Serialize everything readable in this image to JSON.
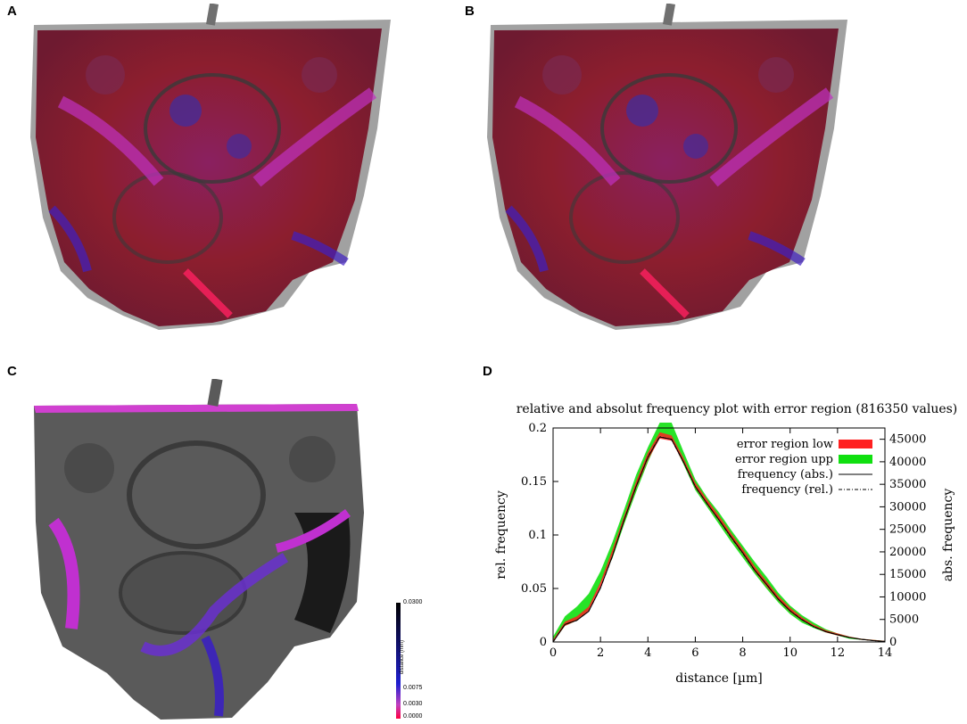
{
  "panels": {
    "a": {
      "label": "A"
    },
    "b": {
      "label": "B"
    },
    "c": {
      "label": "C"
    },
    "d": {
      "label": "D"
    }
  },
  "colorbar": {
    "title": "distance (mm)",
    "ticks": [
      "0.0300",
      "0.0075",
      "0.0030",
      "0.0000"
    ],
    "tick_values": [
      0.03,
      0.0075,
      0.003,
      0.0
    ],
    "colors": [
      "#000000",
      "#1f1fd0",
      "#c040c0",
      "#ff0040"
    ]
  },
  "chart_data": {
    "type": "line",
    "title": "relative and absolut frequency plot with error region (816350 values)",
    "xlabel": "distance [µm]",
    "ylabel": "rel. frequency",
    "y2label": "abs. frequency",
    "xlim": [
      0,
      14
    ],
    "ylim": [
      0,
      0.2
    ],
    "y2lim": [
      0,
      47500
    ],
    "xticks": [
      "0",
      "2",
      "4",
      "6",
      "8",
      "10",
      "12",
      "14"
    ],
    "yticks": [
      "0",
      "0.05",
      "0.1",
      "0.15",
      "0.2"
    ],
    "y2ticks": [
      "0",
      "5000",
      "10000",
      "15000",
      "20000",
      "25000",
      "30000",
      "35000",
      "40000",
      "45000"
    ],
    "legend_position": "top-right",
    "legend": [
      {
        "name": "error region low",
        "color": "#ff2020"
      },
      {
        "name": "error region upp",
        "color": "#10e010"
      },
      {
        "name": "frequency (abs.)",
        "color": "#000000"
      },
      {
        "name": "frequency (rel.)",
        "color": "#000000"
      }
    ],
    "x": [
      0,
      0.5,
      1,
      1.5,
      2,
      2.5,
      3,
      3.5,
      4,
      4.5,
      5,
      5.5,
      6,
      6.5,
      7,
      7.5,
      8,
      8.5,
      9,
      9.5,
      10,
      10.5,
      11,
      11.5,
      12,
      12.5,
      13,
      13.5,
      14
    ],
    "series": [
      {
        "name": "error region low",
        "lower": [
          0,
          0.015,
          0.02,
          0.028,
          0.05,
          0.08,
          0.112,
          0.143,
          0.17,
          0.19,
          0.188,
          0.167,
          0.144,
          0.128,
          0.113,
          0.097,
          0.082,
          0.066,
          0.052,
          0.039,
          0.028,
          0.02,
          0.014,
          0.009,
          0.006,
          0.004,
          0.002,
          0.001,
          0.0005
        ],
        "upper": [
          0.002,
          0.019,
          0.024,
          0.033,
          0.056,
          0.086,
          0.118,
          0.15,
          0.177,
          0.196,
          0.193,
          0.172,
          0.149,
          0.133,
          0.118,
          0.102,
          0.087,
          0.071,
          0.057,
          0.043,
          0.032,
          0.023,
          0.016,
          0.011,
          0.008,
          0.005,
          0.003,
          0.002,
          0.001
        ]
      },
      {
        "name": "error region upp",
        "lower": [
          0,
          0.015,
          0.02,
          0.03,
          0.055,
          0.078,
          0.11,
          0.14,
          0.168,
          0.193,
          0.19,
          0.166,
          0.142,
          0.126,
          0.11,
          0.094,
          0.079,
          0.064,
          0.05,
          0.037,
          0.026,
          0.018,
          0.013,
          0.009,
          0.006,
          0.003,
          0.002,
          0.001,
          0.0005
        ],
        "upper": [
          0.005,
          0.024,
          0.033,
          0.045,
          0.066,
          0.093,
          0.124,
          0.156,
          0.182,
          0.205,
          0.205,
          0.178,
          0.152,
          0.135,
          0.121,
          0.105,
          0.09,
          0.075,
          0.061,
          0.046,
          0.034,
          0.025,
          0.018,
          0.012,
          0.008,
          0.005,
          0.003,
          0.002,
          0.001
        ]
      },
      {
        "name": "frequency (abs.)",
        "values": [
          0,
          3900,
          4800,
          6800,
          12000,
          19000,
          27100,
          34500,
          41000,
          45500,
          45000,
          40000,
          34500,
          30700,
          27100,
          23400,
          19800,
          16000,
          12800,
          9500,
          6900,
          4900,
          3400,
          2300,
          1600,
          1000,
          600,
          300,
          120
        ]
      },
      {
        "name": "frequency (rel.)",
        "values": [
          0,
          0.0164,
          0.0202,
          0.0286,
          0.0505,
          0.08,
          0.114,
          0.145,
          0.173,
          0.192,
          0.189,
          0.168,
          0.145,
          0.129,
          0.114,
          0.098,
          0.083,
          0.067,
          0.054,
          0.04,
          0.029,
          0.021,
          0.014,
          0.0097,
          0.0067,
          0.0042,
          0.0025,
          0.0013,
          0.0005
        ]
      }
    ]
  }
}
